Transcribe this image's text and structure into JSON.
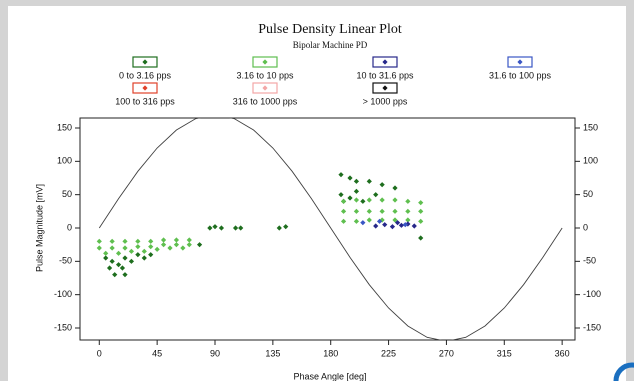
{
  "chart_data": {
    "type": "scatter",
    "title": "Pulse Density Linear Plot",
    "subtitle": "Bipolar Machine PD",
    "x_label": "Phase Angle [deg]",
    "y_label": "Pulse Magnitude [mV]",
    "xlim": [
      -15,
      370
    ],
    "ylim": [
      -168,
      165
    ],
    "xticks": [
      0,
      45,
      90,
      135,
      180,
      225,
      270,
      315,
      360
    ],
    "yticks": [
      -150,
      -100,
      -50,
      0,
      50,
      100,
      150
    ],
    "reference_curve": {
      "color": "#404040",
      "x": [
        0,
        15,
        30,
        45,
        60,
        75,
        90,
        105,
        120,
        135,
        150,
        165,
        180,
        195,
        210,
        225,
        240,
        255,
        270,
        285,
        300,
        315,
        330,
        345,
        360
      ],
      "values": [
        0,
        44,
        85,
        120,
        147,
        164,
        170,
        164,
        147,
        120,
        85,
        44,
        0,
        -44,
        -85,
        -120,
        -147,
        -164,
        -170,
        -164,
        -147,
        -120,
        -85,
        -44,
        0
      ]
    },
    "series": [
      {
        "name": "0 to 3.16 pps",
        "color": "#1e6e1e",
        "x": [
          5,
          10,
          15,
          20,
          25,
          30,
          35,
          40,
          8,
          18,
          12,
          20,
          188,
          195,
          200,
          210,
          220,
          230,
          188,
          200,
          215,
          190,
          195,
          205,
          250,
          86,
          90,
          95,
          106,
          110,
          140,
          145,
          78
        ],
        "values": [
          -45,
          -50,
          -55,
          -45,
          -50,
          -40,
          -45,
          -40,
          -60,
          -60,
          -70,
          -70,
          80,
          75,
          70,
          70,
          65,
          60,
          50,
          55,
          50,
          40,
          45,
          40,
          -15,
          0,
          2,
          0,
          0,
          0,
          0,
          2,
          -25
        ]
      },
      {
        "name": "3.16 to 10 pps",
        "color": "#5fbf4f",
        "x": [
          0,
          10,
          20,
          30,
          40,
          50,
          60,
          70,
          0,
          10,
          20,
          30,
          40,
          50,
          60,
          70,
          5,
          15,
          25,
          35,
          45,
          55,
          65,
          190,
          200,
          210,
          220,
          230,
          240,
          250,
          190,
          200,
          210,
          220,
          230,
          240,
          250,
          190,
          200,
          210,
          220,
          230,
          240,
          250
        ],
        "values": [
          -20,
          -20,
          -20,
          -20,
          -20,
          -18,
          -18,
          -18,
          -30,
          -30,
          -30,
          -28,
          -28,
          -25,
          -25,
          -25,
          -38,
          -38,
          -35,
          -35,
          -32,
          -30,
          -30,
          40,
          42,
          42,
          42,
          42,
          40,
          38,
          25,
          25,
          25,
          25,
          25,
          25,
          25,
          10,
          10,
          12,
          12,
          12,
          12,
          10
        ]
      },
      {
        "name": "10 to 31.6 pps",
        "color": "#27288a",
        "x": [
          215,
          222,
          228,
          235,
          240,
          245,
          232
        ],
        "values": [
          3,
          5,
          2,
          4,
          6,
          3,
          8
        ]
      },
      {
        "name": "31.6 to 100 pps",
        "color": "#3a56c4",
        "x": [
          205,
          218,
          238
        ],
        "values": [
          8,
          10,
          5
        ]
      },
      {
        "name": "100 to 316 pps",
        "color": "#e0412a",
        "x": [],
        "values": []
      },
      {
        "name": "316 to 1000 pps",
        "color": "#f3a7a7",
        "x": [],
        "values": []
      },
      {
        "name": "> 1000 pps",
        "color": "#111111",
        "x": [],
        "values": []
      }
    ]
  }
}
